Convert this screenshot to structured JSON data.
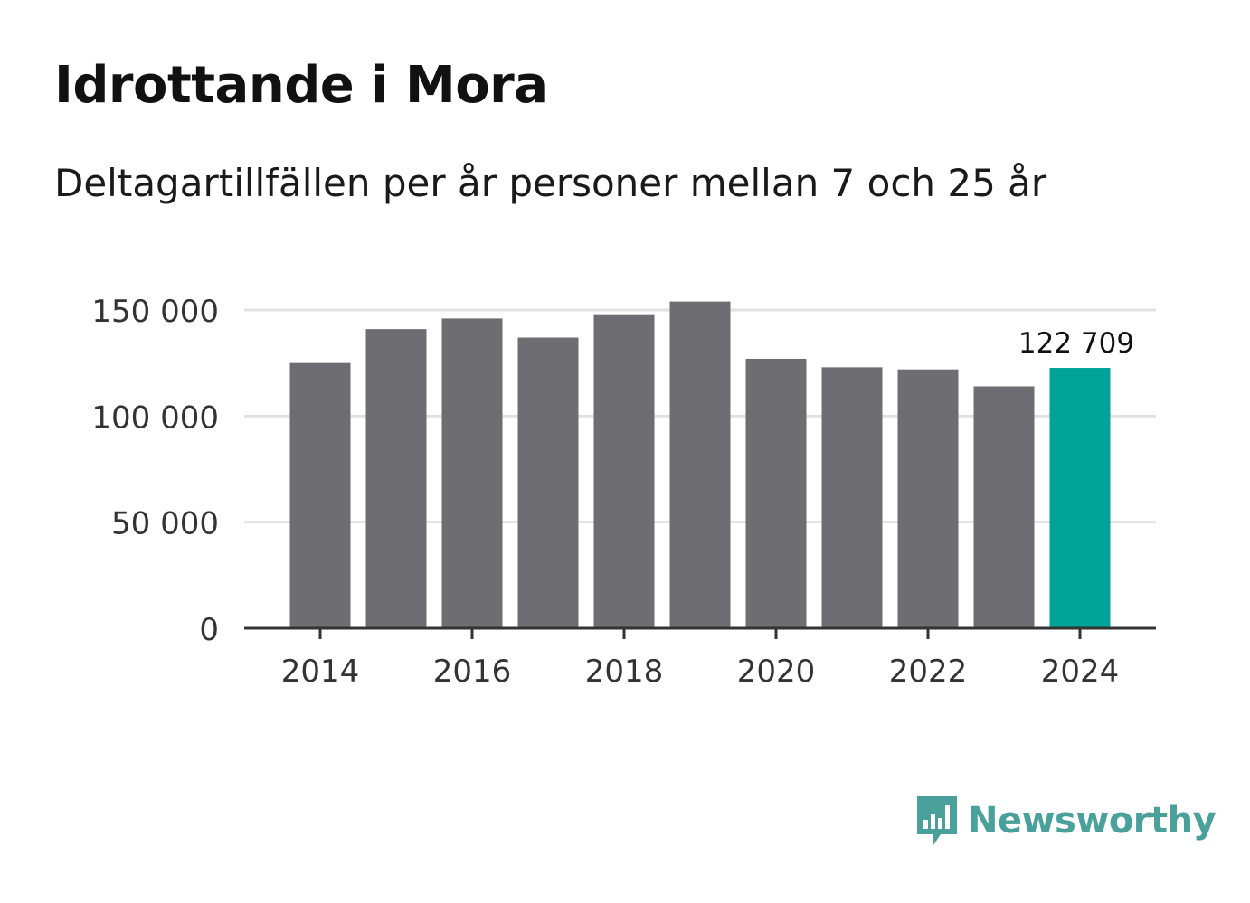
{
  "title": "Idrottande i Mora",
  "subtitle": "Deltagartillfällen per år personer mellan 7 och 25 år",
  "brand": {
    "name": "Newsworthy",
    "icon": "newsworthy-logo-icon"
  },
  "colors": {
    "bar": "#6e6d72",
    "highlight": "#00a398",
    "grid": "#e2e2e2",
    "axis": "#333333",
    "text": "#333333",
    "brand": "#4aa09b"
  },
  "chart_data": {
    "type": "bar",
    "title": "Idrottande i Mora",
    "subtitle": "Deltagartillfällen per år personer mellan 7 och 25 år",
    "xlabel": "",
    "ylabel": "",
    "categories": [
      "2014",
      "2015",
      "2016",
      "2017",
      "2018",
      "2019",
      "2020",
      "2021",
      "2022",
      "2023",
      "2024"
    ],
    "values": [
      125000,
      141000,
      146000,
      137000,
      148000,
      154000,
      127000,
      123000,
      122000,
      114000,
      122709
    ],
    "highlight_index": 10,
    "x_tick_labels": [
      "2014",
      "",
      "2016",
      "",
      "2018",
      "",
      "2020",
      "",
      "2022",
      "",
      "2024"
    ],
    "y_ticks": [
      0,
      50000,
      100000,
      150000
    ],
    "y_tick_labels": [
      "0",
      "50 000",
      "100 000",
      "150 000"
    ],
    "ylim": [
      0,
      150000
    ],
    "grid": true,
    "annotations": [
      {
        "index": 10,
        "text": "122 709"
      }
    ]
  }
}
